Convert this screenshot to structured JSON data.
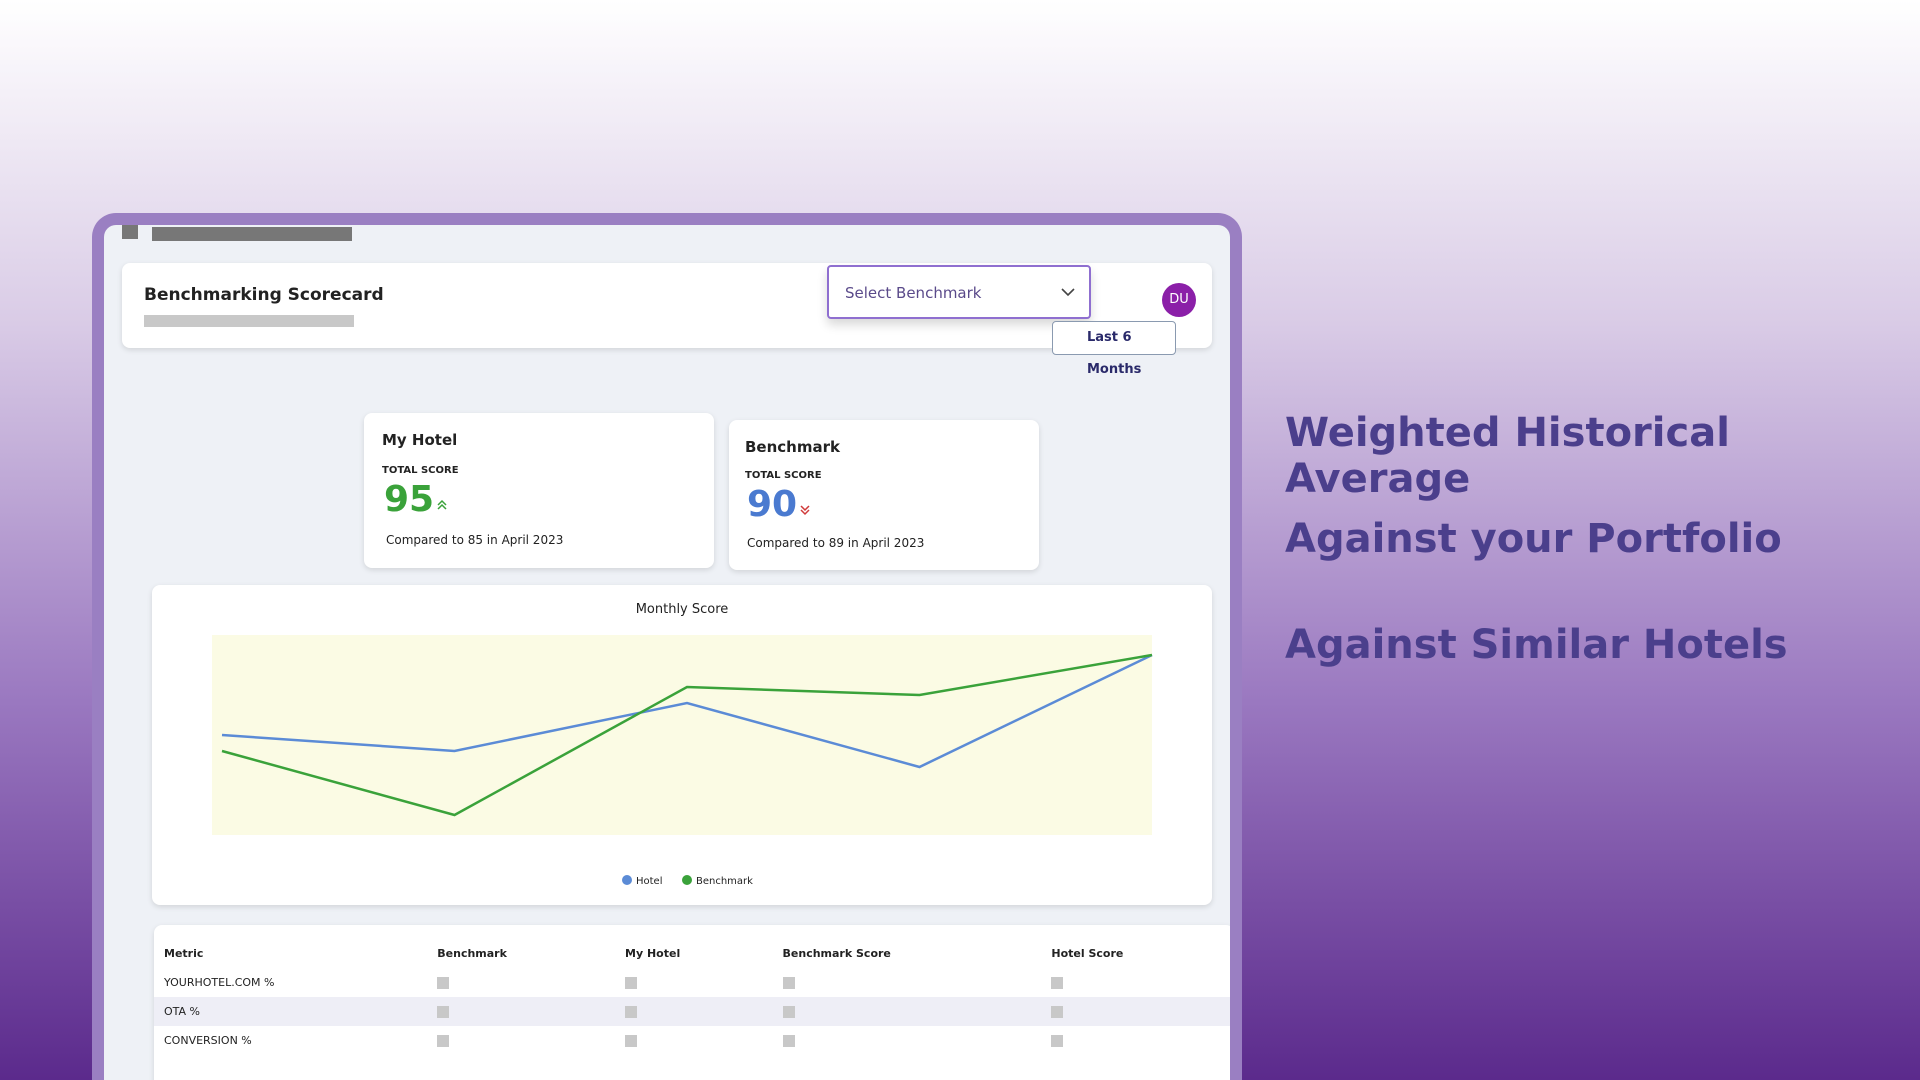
{
  "header": {
    "title": "Benchmarking Scorecard",
    "dropdown": "Select Benchmark",
    "avatar": "DU",
    "date_range": "Last 6 Months"
  },
  "cards": [
    {
      "title": "My Hotel",
      "label": "TOTAL SCORE",
      "score": 95,
      "comparison": "Compared to 85 in April 2023"
    },
    {
      "title": "Benchmark",
      "label": "TOTAL SCORE",
      "score": 90,
      "comparison": "Compared to 89 in April 2023"
    }
  ],
  "chart_data": {
    "type": "line",
    "title": "Monthly Score",
    "series": [
      {
        "name": "Hotel",
        "color": "#5b8bd6",
        "values": [
          88,
          87,
          90,
          86,
          93
        ]
      },
      {
        "name": "Benchmark",
        "color": "#3aa23a",
        "values": [
          87,
          83,
          91,
          90.5,
          93
        ]
      }
    ]
  },
  "table": {
    "columns": [
      "Metric",
      "Benchmark",
      "My Hotel",
      "Benchmark Score",
      "Hotel Score"
    ],
    "rows": [
      [
        "YOURHOTEL.COM %"
      ],
      [
        "OTA %"
      ],
      [
        "CONVERSION %"
      ]
    ]
  },
  "taglines": [
    "Weighted Historical Average",
    "Against your Portfolio",
    "Against Similar Hotels"
  ]
}
